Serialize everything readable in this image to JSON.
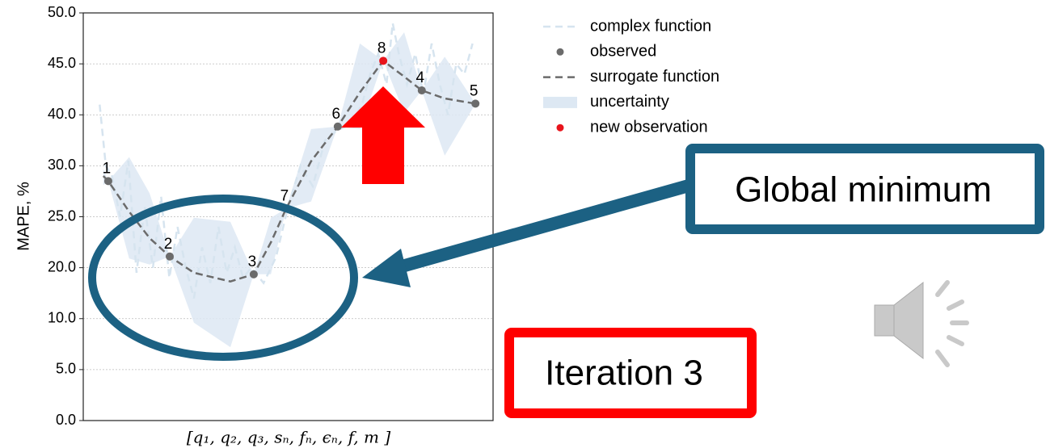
{
  "chart_data": {
    "type": "line",
    "ylabel": "MAPE, %",
    "xlabel": "[q₁, q₂, q₃, sₙ, fₙ, ϵₙ, f, m ]",
    "xlim": [
      0,
      1
    ],
    "ylim": [
      0,
      50
    ],
    "yticks": [
      {
        "value": 0,
        "label": "0.0"
      },
      {
        "value": 5,
        "label": "5.0"
      },
      {
        "value": 10,
        "label": "10.0"
      },
      {
        "value": 20,
        "label": "20.0"
      },
      {
        "value": 25,
        "label": "25.0"
      },
      {
        "value": 30,
        "label": "30.0"
      },
      {
        "value": 40,
        "label": "40.0"
      },
      {
        "value": 45,
        "label": "45.0"
      },
      {
        "value": 50,
        "label": "50.0"
      }
    ],
    "grid": true,
    "legend": "upper right",
    "series": [
      {
        "name": "complex function",
        "color": "#d6e4ef",
        "x": [
          0.04,
          0.055,
          0.07,
          0.09,
          0.11,
          0.13,
          0.15,
          0.17,
          0.19,
          0.21,
          0.23,
          0.25,
          0.27,
          0.29,
          0.31,
          0.33,
          0.35,
          0.37,
          0.39,
          0.41,
          0.44,
          0.47,
          0.5,
          0.53,
          0.56,
          0.59,
          0.62,
          0.65,
          0.68,
          0.7,
          0.72,
          0.74,
          0.755,
          0.77,
          0.79,
          0.81,
          0.83,
          0.85,
          0.87,
          0.89,
          0.91,
          0.93,
          0.95
        ],
        "values": [
          41,
          30,
          29,
          25,
          31,
          19,
          26,
          20,
          27,
          18,
          24,
          20,
          14,
          22,
          17,
          24,
          19,
          22,
          18,
          20,
          17,
          21,
          26,
          30,
          28,
          35,
          37,
          38,
          41,
          44,
          46,
          43,
          49,
          46,
          43,
          46,
          42,
          47,
          43,
          40,
          45,
          44,
          47
        ]
      },
      {
        "name": "observed",
        "color": "#6b6b6b",
        "x": [
          0.061,
          0.211,
          0.416,
          0.495,
          0.621,
          0.826,
          0.957
        ],
        "values": [
          28.5,
          21.1,
          18.7,
          25.8,
          37.7,
          42.4,
          41.1
        ],
        "labels": [
          1,
          2,
          3,
          7,
          6,
          4,
          5
        ]
      },
      {
        "name": "surrogate function",
        "color": "#6b6b6b",
        "x": [
          0.049,
          0.061,
          0.112,
          0.162,
          0.211,
          0.27,
          0.359,
          0.416,
          0.458,
          0.495,
          0.556,
          0.621,
          0.675,
          0.732,
          0.783,
          0.826,
          0.882,
          0.957
        ],
        "values": [
          29.0,
          28.5,
          25.5,
          22.9,
          21.1,
          19.0,
          17.3,
          18.7,
          22.5,
          25.8,
          30.9,
          37.7,
          42.2,
          45.3,
          43.75,
          42.4,
          41.6,
          41.1
        ]
      },
      {
        "name": "uncertainty",
        "color": "#dde8f3",
        "x": [
          0.049,
          0.061,
          0.112,
          0.162,
          0.211,
          0.27,
          0.359,
          0.416,
          0.458,
          0.495,
          0.556,
          0.621,
          0.675,
          0.732,
          0.783,
          0.826,
          0.882,
          0.957
        ],
        "upper": [
          29.7,
          28.5,
          31.7,
          27.3,
          21.1,
          24.9,
          24.5,
          18.7,
          24.9,
          25.8,
          37.2,
          37.7,
          47.0,
          45.3,
          48.1,
          42.4,
          45.7,
          41.1
        ],
        "lower": [
          28.1,
          28.5,
          20.9,
          20.3,
          21.1,
          9.6,
          7.2,
          18.7,
          18.7,
          25.8,
          26.5,
          37.7,
          37.2,
          45.3,
          40.2,
          42.4,
          32.0,
          41.1
        ]
      },
      {
        "name": "new observation",
        "color": "#e8141c",
        "x": [
          0.732
        ],
        "values": [
          45.3
        ],
        "labels": [
          8
        ]
      }
    ],
    "annotations": [
      "Global minimum",
      "Iteration 3"
    ]
  }
}
